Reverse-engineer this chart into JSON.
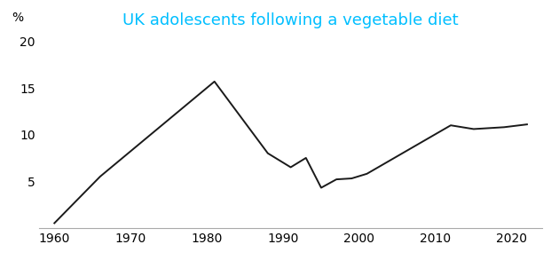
{
  "title": "UK adolescents following a vegetable diet",
  "title_color": "#00BFFF",
  "ylabel": "%",
  "x_values": [
    1960,
    1966,
    1981,
    1988,
    1991,
    1993,
    1995,
    1997,
    1999,
    2001,
    2012,
    2015,
    2019,
    2022
  ],
  "y_values": [
    0.5,
    5.5,
    15.7,
    8.0,
    6.5,
    7.5,
    4.3,
    5.2,
    5.3,
    5.8,
    11.0,
    10.6,
    10.8,
    11.1
  ],
  "xlim": [
    1958,
    2024
  ],
  "ylim": [
    0,
    21
  ],
  "xticks": [
    1960,
    1970,
    1980,
    1990,
    2000,
    2010,
    2020
  ],
  "yticks": [
    5,
    10,
    15,
    20
  ],
  "ytick_labels": [
    "5",
    "10",
    "15",
    "20"
  ],
  "line_color": "#1a1a1a",
  "line_width": 1.4,
  "background_color": "#ffffff",
  "tick_label_size": 10,
  "title_fontsize": 13
}
